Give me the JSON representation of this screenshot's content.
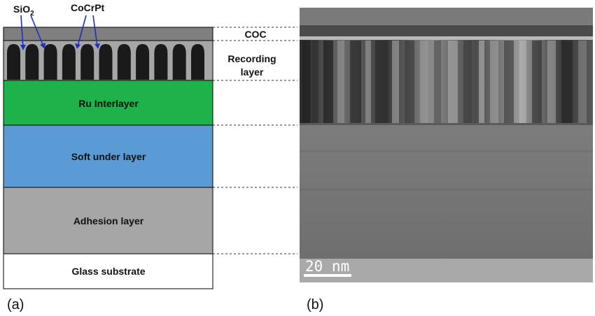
{
  "panel_a": {
    "label": "(a)",
    "top_labels": {
      "oxide": "SiO",
      "oxide_sub": "2",
      "alloy": "CoCrPt"
    },
    "layers": [
      {
        "key": "coc",
        "side_label": "COC",
        "color": "#7f7f7f"
      },
      {
        "key": "recording",
        "side_label_line1": "Recording",
        "side_label_line2": "layer",
        "matrix_color": "#a6a6a6",
        "grain_color": "#1a1a1a",
        "grain_count": 11
      },
      {
        "key": "ru",
        "label": "Ru Interlayer",
        "color": "#1fb14a"
      },
      {
        "key": "sul",
        "label": "Soft under layer",
        "color": "#5b9bd5"
      },
      {
        "key": "adhesion",
        "label": "Adhesion layer",
        "color": "#a6a6a6"
      },
      {
        "key": "glass",
        "label": "Glass substrate",
        "color": "#ffffff"
      }
    ],
    "arrow_color": "#1f2fbf"
  },
  "panel_b": {
    "label": "(b)",
    "scale_bar_text": "20 nm"
  }
}
